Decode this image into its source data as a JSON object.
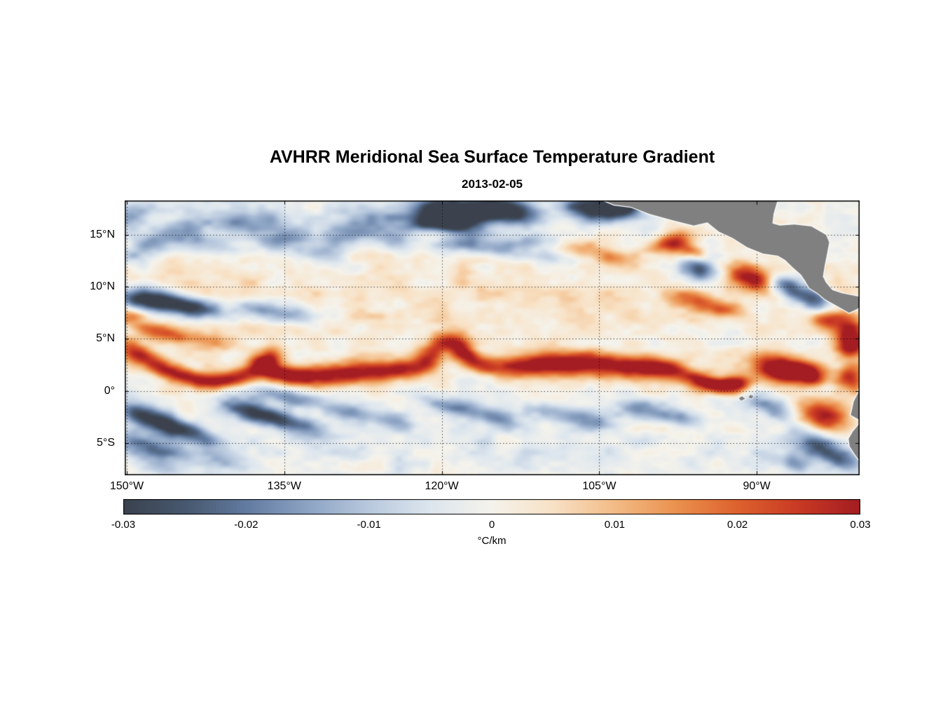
{
  "chart_data": {
    "type": "heatmap",
    "title": "AVHRR Meridional Sea Surface Temperature Gradient",
    "subtitle": "2013-02-05",
    "geo": {
      "lon_range": [
        -150.2,
        -80.2
      ],
      "lat_range": [
        -8.1,
        18.3
      ]
    },
    "grid": {
      "on": true,
      "style": "dotted",
      "color": "rgba(0,0,0,0.7)"
    },
    "xticks": [
      {
        "v": -150,
        "label": "150°W"
      },
      {
        "v": -135,
        "label": "135°W"
      },
      {
        "v": -120,
        "label": "120°W"
      },
      {
        "v": -105,
        "label": "105°W"
      },
      {
        "v": -90,
        "label": "90°W"
      }
    ],
    "yticks": [
      {
        "v": 15,
        "label": "15°N"
      },
      {
        "v": 10,
        "label": "10°N"
      },
      {
        "v": 5,
        "label": "5°N"
      },
      {
        "v": 0,
        "label": "0°"
      },
      {
        "v": -5,
        "label": "5°S"
      }
    ],
    "colorbar": {
      "min": -0.03,
      "max": 0.03,
      "label": "°C/km",
      "ticks": [
        {
          "v": -0.03,
          "label": "-0.03"
        },
        {
          "v": -0.02,
          "label": "-0.02"
        },
        {
          "v": -0.01,
          "label": "-0.01"
        },
        {
          "v": 0,
          "label": "0"
        },
        {
          "v": 0.01,
          "label": "0.01"
        },
        {
          "v": 0.02,
          "label": "0.02"
        },
        {
          "v": 0.03,
          "label": "0.03"
        }
      ]
    },
    "colormap": {
      "stops": [
        {
          "v": -0.03,
          "color": "#3b424e"
        },
        {
          "v": -0.025,
          "color": "#47586f"
        },
        {
          "v": -0.02,
          "color": "#627ba0"
        },
        {
          "v": -0.015,
          "color": "#8da4c4"
        },
        {
          "v": -0.01,
          "color": "#b9c9de"
        },
        {
          "v": -0.005,
          "color": "#dde6ee"
        },
        {
          "v": 0.0,
          "color": "#f5f3ec"
        },
        {
          "v": 0.005,
          "color": "#f8e2c6"
        },
        {
          "v": 0.01,
          "color": "#f3bc87"
        },
        {
          "v": 0.015,
          "color": "#eb924f"
        },
        {
          "v": 0.02,
          "color": "#de622e"
        },
        {
          "v": 0.025,
          "color": "#c93a24"
        },
        {
          "v": 0.03,
          "color": "#a41d22"
        }
      ]
    },
    "land": {
      "color": "#808080",
      "coast_color": "#ffffff",
      "polygons": {
        "mainland": [
          [
            -104.8,
            18.4
          ],
          [
            -103.6,
            17.9
          ],
          [
            -102.0,
            17.7
          ],
          [
            -100.2,
            17.0
          ],
          [
            -98.0,
            16.4
          ],
          [
            -96.0,
            15.9
          ],
          [
            -94.7,
            16.2
          ],
          [
            -93.6,
            15.3
          ],
          [
            -92.3,
            14.7
          ],
          [
            -90.9,
            13.8
          ],
          [
            -89.4,
            13.2
          ],
          [
            -88.0,
            13.0
          ],
          [
            -87.3,
            12.6
          ],
          [
            -86.6,
            11.9
          ],
          [
            -85.8,
            11.2
          ],
          [
            -85.4,
            10.6
          ],
          [
            -85.0,
            9.9
          ],
          [
            -84.2,
            9.4
          ],
          [
            -83.5,
            8.8
          ],
          [
            -82.4,
            8.2
          ],
          [
            -81.2,
            7.5
          ],
          [
            -80.4,
            7.9
          ],
          [
            -79.9,
            8.4
          ],
          [
            -79.9,
            9.0
          ],
          [
            -81.0,
            9.2
          ],
          [
            -81.9,
            9.4
          ],
          [
            -82.8,
            9.7
          ],
          [
            -83.4,
            10.4
          ],
          [
            -83.7,
            11.0
          ],
          [
            -83.5,
            12.2
          ],
          [
            -83.3,
            13.2
          ],
          [
            -83.1,
            14.3
          ],
          [
            -83.4,
            15.0
          ],
          [
            -84.8,
            15.8
          ],
          [
            -86.4,
            16.0
          ],
          [
            -87.8,
            15.9
          ],
          [
            -88.5,
            16.1
          ],
          [
            -88.4,
            17.0
          ],
          [
            -88.0,
            18.4
          ]
        ],
        "south_america": [
          [
            -79.5,
            1.4
          ],
          [
            -80.15,
            0.5
          ],
          [
            -80.35,
            -0.2
          ],
          [
            -80.75,
            -1.0
          ],
          [
            -80.95,
            -1.9
          ],
          [
            -81.05,
            -2.3
          ],
          [
            -80.45,
            -2.65
          ],
          [
            -79.95,
            -2.9
          ],
          [
            -80.35,
            -3.3
          ],
          [
            -80.85,
            -3.9
          ],
          [
            -81.25,
            -4.6
          ],
          [
            -81.15,
            -5.3
          ],
          [
            -80.65,
            -6.1
          ],
          [
            -80.05,
            -6.9
          ],
          [
            -79.5,
            -7.8
          ],
          [
            -78.5,
            -8.5
          ],
          [
            -78.5,
            2.0
          ]
        ],
        "islands": [
          [
            [
              -90.6,
              -0.35
            ],
            [
              -90.3,
              -0.5
            ],
            [
              -90.5,
              -0.75
            ],
            [
              -90.8,
              -0.6
            ]
          ],
          [
            [
              -91.4,
              -0.5
            ],
            [
              -91.1,
              -0.75
            ],
            [
              -91.5,
              -0.95
            ],
            [
              -91.7,
              -0.7
            ]
          ]
        ]
      }
    },
    "field": {
      "base": 0.0005,
      "noise_seed": 7.3,
      "noise": [
        {
          "amp": 0.0038,
          "fx": 0.5,
          "fy": 0.85,
          "ox": 0,
          "oy": 0
        },
        {
          "amp": 0.0019,
          "fx": 1.15,
          "fy": 1.9,
          "ox": 13.7,
          "oy": 7.3
        }
      ],
      "features_format": [
        "lon",
        "lat",
        "sigma_lon_deg",
        "sigma_lat_deg",
        "rotation_deg",
        "amplitude_C_per_km"
      ],
      "features": [
        [
          -115,
          8.5,
          20,
          3.5,
          0,
          0.004
        ],
        [
          -120,
          -5.5,
          22,
          3.0,
          0,
          -0.004
        ],
        [
          -134,
          16.8,
          16,
          2.2,
          0,
          -0.005
        ],
        [
          -146,
          11,
          8,
          2.0,
          0,
          0.003
        ],
        [
          -149.3,
          3.8,
          1.5,
          0.7,
          -28,
          0.019
        ],
        [
          -146.8,
          2.4,
          1.8,
          0.65,
          -22,
          0.022
        ],
        [
          -144.2,
          1.3,
          1.8,
          0.6,
          -12,
          0.022
        ],
        [
          -141.5,
          1.0,
          1.6,
          0.55,
          0,
          0.02
        ],
        [
          -139.2,
          1.4,
          1.4,
          0.6,
          10,
          0.021
        ],
        [
          -136.8,
          2.8,
          1.1,
          0.75,
          25,
          0.03
        ],
        [
          -135.6,
          1.7,
          1.6,
          0.6,
          -15,
          0.022
        ],
        [
          -133.4,
          1.5,
          1.8,
          0.7,
          -4,
          0.022
        ],
        [
          -130.2,
          1.6,
          1.9,
          0.75,
          3,
          0.024
        ],
        [
          -126.8,
          1.9,
          1.9,
          0.75,
          0,
          0.024
        ],
        [
          -123.4,
          2.1,
          1.7,
          0.7,
          8,
          0.022
        ],
        [
          -121.0,
          3.3,
          1.1,
          0.8,
          38,
          0.021
        ],
        [
          -119.4,
          4.8,
          1.2,
          0.65,
          0,
          0.022
        ],
        [
          -118.0,
          3.9,
          0.9,
          0.7,
          -38,
          0.019
        ],
        [
          -116.9,
          2.9,
          1.2,
          0.6,
          -22,
          0.018
        ],
        [
          -114.6,
          2.3,
          1.7,
          0.6,
          -4,
          0.017
        ],
        [
          -111.6,
          2.5,
          1.9,
          0.8,
          3,
          0.024
        ],
        [
          -108.2,
          2.6,
          1.9,
          0.8,
          0,
          0.026
        ],
        [
          -104.6,
          2.5,
          1.9,
          0.8,
          -3,
          0.026
        ],
        [
          -101.2,
          2.3,
          1.8,
          0.75,
          -4,
          0.024
        ],
        [
          -98.6,
          2.1,
          1.6,
          0.7,
          -6,
          0.023
        ],
        [
          -95.4,
          1.0,
          1.3,
          0.6,
          -14,
          0.026
        ],
        [
          -93.2,
          0.5,
          1.3,
          0.55,
          -8,
          0.03
        ],
        [
          -91.7,
          0.9,
          0.9,
          0.5,
          0,
          0.021
        ],
        [
          -88.4,
          2.2,
          1.6,
          0.9,
          -10,
          0.031
        ],
        [
          -86.2,
          2.0,
          1.2,
          0.8,
          0,
          0.028
        ],
        [
          -84.6,
          1.4,
          0.9,
          0.7,
          0,
          0.024
        ],
        [
          -81.0,
          1.3,
          1.0,
          0.9,
          0,
          0.026
        ],
        [
          -81.2,
          5.8,
          1.2,
          1.1,
          0,
          0.03
        ],
        [
          -81.0,
          4.2,
          1.0,
          0.8,
          0,
          0.026
        ],
        [
          -83.4,
          6.9,
          1.1,
          0.7,
          0,
          0.021
        ],
        [
          -147.6,
          5.8,
          1.7,
          0.6,
          -12,
          0.016
        ],
        [
          -144.6,
          5.1,
          1.7,
          0.55,
          -10,
          0.013
        ],
        [
          -141.6,
          4.7,
          1.5,
          0.5,
          -8,
          0.01
        ],
        [
          -149.7,
          7.2,
          1.0,
          0.5,
          0,
          0.015
        ],
        [
          -148.8,
          8.9,
          2.0,
          0.75,
          -6,
          -0.027
        ],
        [
          -145.8,
          8.4,
          2.0,
          0.7,
          -8,
          -0.025
        ],
        [
          -142.9,
          7.8,
          1.7,
          0.6,
          -10,
          -0.018
        ],
        [
          -137.6,
          7.9,
          2.2,
          0.65,
          -8,
          -0.014
        ],
        [
          -133.6,
          7.3,
          2.0,
          0.6,
          -8,
          -0.011
        ],
        [
          -149.6,
          16.8,
          1.2,
          0.8,
          0,
          -0.013
        ],
        [
          -148.4,
          13.3,
          1.6,
          0.9,
          15,
          -0.013
        ],
        [
          -145.2,
          15.3,
          2.2,
          0.75,
          8,
          -0.015
        ],
        [
          -141.8,
          14.0,
          1.8,
          0.7,
          -12,
          -0.012
        ],
        [
          -138.5,
          16.3,
          1.8,
          0.7,
          4,
          -0.013
        ],
        [
          -135.2,
          14.7,
          2.0,
          0.8,
          8,
          -0.014
        ],
        [
          -131.8,
          13.4,
          1.8,
          0.7,
          -8,
          -0.012
        ],
        [
          -128.8,
          15.2,
          2.0,
          0.8,
          4,
          -0.014
        ],
        [
          -126.2,
          16.6,
          1.8,
          0.7,
          0,
          -0.013
        ],
        [
          -124.5,
          14.4,
          1.6,
          0.6,
          -8,
          -0.011
        ],
        [
          -120.5,
          17.3,
          1.8,
          1.0,
          0,
          -0.026
        ],
        [
          -117.8,
          17.0,
          2.0,
          1.0,
          6,
          -0.028
        ],
        [
          -114.8,
          17.5,
          1.8,
          0.9,
          0,
          -0.026
        ],
        [
          -112.5,
          16.9,
          1.5,
          0.8,
          -8,
          -0.022
        ],
        [
          -118.5,
          15.7,
          1.8,
          0.6,
          -12,
          -0.016
        ],
        [
          -121.8,
          16.0,
          1.2,
          0.5,
          15,
          -0.014
        ],
        [
          -106.3,
          17.7,
          1.6,
          0.8,
          0,
          -0.025
        ],
        [
          -103.8,
          17.3,
          1.6,
          0.8,
          0,
          -0.027
        ],
        [
          -102.2,
          17.9,
          1.2,
          0.7,
          0,
          -0.022
        ],
        [
          -118.5,
          14.1,
          2.2,
          0.55,
          6,
          -0.013
        ],
        [
          -115.0,
          13.5,
          2.0,
          0.55,
          -6,
          -0.012
        ],
        [
          -111.8,
          14.4,
          1.8,
          0.55,
          8,
          -0.011
        ],
        [
          -109.5,
          12.9,
          1.6,
          0.5,
          0,
          -0.01
        ],
        [
          -106.5,
          13.8,
          1.8,
          0.55,
          10,
          0.012
        ],
        [
          -104.0,
          12.8,
          1.6,
          0.5,
          -10,
          0.011
        ],
        [
          -98.2,
          14.2,
          1.6,
          0.6,
          18,
          0.021
        ],
        [
          -96.3,
          13.4,
          1.4,
          0.55,
          -25,
          0.019
        ],
        [
          -95.5,
          11.8,
          1.3,
          0.85,
          -10,
          -0.026
        ],
        [
          -90.3,
          10.8,
          1.7,
          0.8,
          -18,
          0.03
        ],
        [
          -87.3,
          10.0,
          1.4,
          0.7,
          -18,
          -0.027
        ],
        [
          -96.0,
          8.6,
          1.8,
          0.6,
          -14,
          0.016
        ],
        [
          -93.0,
          7.8,
          1.6,
          0.55,
          -12,
          0.015
        ],
        [
          -84.3,
          8.5,
          1.3,
          0.8,
          -20,
          -0.024
        ],
        [
          -89.0,
          -1.4,
          1.8,
          0.65,
          -18,
          -0.016
        ],
        [
          -83.6,
          -2.4,
          1.7,
          1.0,
          -18,
          0.032
        ],
        [
          -84.5,
          -5.2,
          2.0,
          0.9,
          -22,
          -0.02
        ],
        [
          -81.6,
          -6.6,
          1.6,
          0.8,
          -20,
          -0.017
        ],
        [
          -86.8,
          -6.9,
          1.6,
          0.7,
          -15,
          -0.014
        ],
        [
          -148.9,
          -2.3,
          1.7,
          0.8,
          -28,
          -0.021
        ],
        [
          -146.2,
          -3.3,
          1.9,
          0.75,
          -26,
          -0.022
        ],
        [
          -143.4,
          -4.2,
          1.7,
          0.65,
          -24,
          -0.016
        ],
        [
          -148.6,
          -5.1,
          1.7,
          0.75,
          -16,
          -0.018
        ],
        [
          -145.8,
          -5.9,
          1.4,
          0.6,
          -14,
          -0.012
        ],
        [
          -138.3,
          -2.0,
          2.3,
          0.7,
          -16,
          -0.025
        ],
        [
          -134.2,
          -3.1,
          2.1,
          0.65,
          -16,
          -0.021
        ],
        [
          -134.6,
          -0.7,
          2.3,
          0.55,
          -8,
          -0.016
        ],
        [
          -129.2,
          -1.9,
          1.9,
          0.6,
          -14,
          -0.014
        ],
        [
          -124.8,
          -2.8,
          1.9,
          0.6,
          -14,
          -0.012
        ],
        [
          -119.5,
          -1.4,
          2.0,
          0.6,
          -10,
          -0.016
        ],
        [
          -115.0,
          -2.5,
          1.8,
          0.6,
          -14,
          -0.013
        ],
        [
          -110.3,
          -1.9,
          1.8,
          0.6,
          -12,
          -0.012
        ],
        [
          -105.8,
          -2.9,
          1.8,
          0.6,
          -14,
          -0.013
        ],
        [
          -101.2,
          -1.7,
          1.8,
          0.6,
          -12,
          -0.015
        ],
        [
          -97.3,
          -2.7,
          1.6,
          0.6,
          -14,
          -0.012
        ],
        [
          -147.0,
          -7.2,
          2.0,
          0.7,
          -10,
          -0.012
        ],
        [
          -141.0,
          -6.9,
          1.8,
          0.6,
          -10,
          -0.01
        ]
      ]
    }
  }
}
